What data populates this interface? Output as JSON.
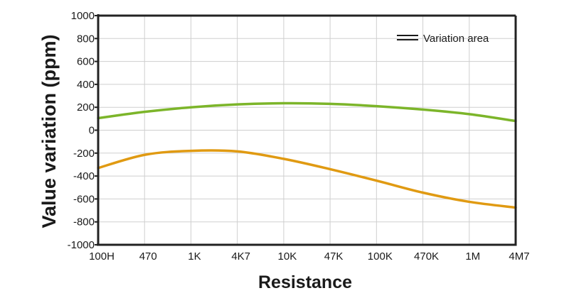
{
  "chart_data": {
    "type": "line",
    "xlabel": "Resistance",
    "ylabel": "Value variation (ppm)",
    "categories": [
      "100H",
      "470",
      "1K",
      "4K7",
      "10K",
      "47K",
      "100K",
      "470K",
      "1M",
      "4M7"
    ],
    "ylim": [
      -1000,
      1000
    ],
    "yticks": [
      1000,
      800,
      600,
      400,
      200,
      0,
      -200,
      -400,
      -600,
      -800,
      -1000
    ],
    "yticks_labels": [
      "1000",
      "800",
      "600",
      "400",
      "200",
      "0",
      "-200",
      "-400",
      "-600",
      "-800",
      "-1000"
    ],
    "grid": true,
    "legend": {
      "label": "Variation area",
      "position": "top-right"
    },
    "series": [
      {
        "color": "#7cb52a",
        "values": [
          105,
          160,
          200,
          225,
          235,
          230,
          210,
          180,
          140,
          80
        ]
      },
      {
        "color": "#e09a12",
        "values": [
          -330,
          -215,
          -180,
          -185,
          -250,
          -340,
          -440,
          -545,
          -625,
          -675
        ]
      }
    ]
  }
}
